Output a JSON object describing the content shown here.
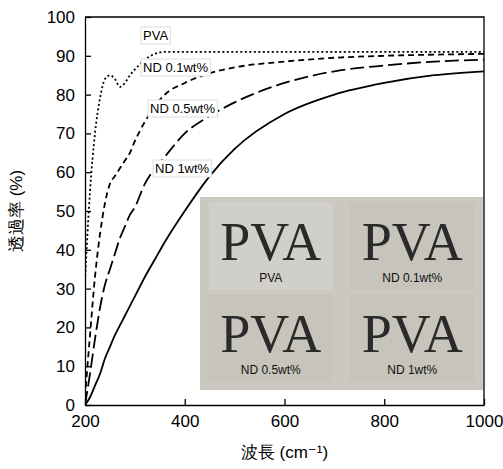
{
  "chart_data": {
    "type": "line",
    "x_label": "波長 (cm⁻¹)",
    "y_label": "透過率 (%)",
    "x": [
      200,
      210,
      220,
      230,
      240,
      250,
      260,
      270,
      280,
      290,
      300,
      320,
      340,
      360,
      400,
      450,
      500,
      600,
      700,
      800,
      900,
      1000
    ],
    "series": [
      {
        "name": "PVA",
        "color": "#000000",
        "line_style": "dotted",
        "values": [
          32,
          55,
          70,
          79,
          84,
          85,
          84,
          82,
          83,
          85,
          86.5,
          89,
          90.5,
          91,
          91,
          91,
          91,
          91,
          91,
          91,
          91,
          91
        ]
      },
      {
        "name": "ND 0.1wt%",
        "color": "#000000",
        "line_style": "dashed",
        "values": [
          2,
          18,
          33,
          44,
          52,
          57,
          59,
          61,
          63,
          65,
          68,
          73,
          77,
          80,
          83,
          85.5,
          87,
          88.5,
          89.5,
          90,
          90.3,
          90.5
        ]
      },
      {
        "name": "ND 0.5wt%",
        "color": "#000000",
        "line_style": "longdash",
        "values": [
          0,
          8,
          17,
          25,
          31,
          35,
          39,
          43,
          46,
          49,
          51,
          57,
          61,
          64,
          70,
          74.5,
          78,
          83,
          86,
          87.5,
          88.5,
          89
        ]
      },
      {
        "name": "ND 1wt%",
        "color": "#000000",
        "line_style": "solid",
        "values": [
          0,
          2,
          5,
          8,
          12,
          15,
          18,
          20.5,
          23,
          25.5,
          28,
          33,
          37.5,
          42,
          50,
          59,
          66,
          75,
          80,
          83,
          85,
          86
        ]
      }
    ],
    "xlim": [
      200,
      1000
    ],
    "xticks": [
      200,
      400,
      600,
      800,
      1000
    ],
    "ylim": [
      0,
      100
    ],
    "yticks": [
      0,
      10,
      20,
      30,
      40,
      50,
      60,
      70,
      80,
      90,
      100
    ],
    "grid": false,
    "annotations": [
      {
        "text": "PVA",
        "caption": "PVA"
      },
      {
        "text": "PVA",
        "caption": "ND 0.1wt%"
      },
      {
        "text": "PVA",
        "caption": "ND 0.5wt%"
      },
      {
        "text": "PVA",
        "caption": "ND 1wt%"
      }
    ]
  }
}
